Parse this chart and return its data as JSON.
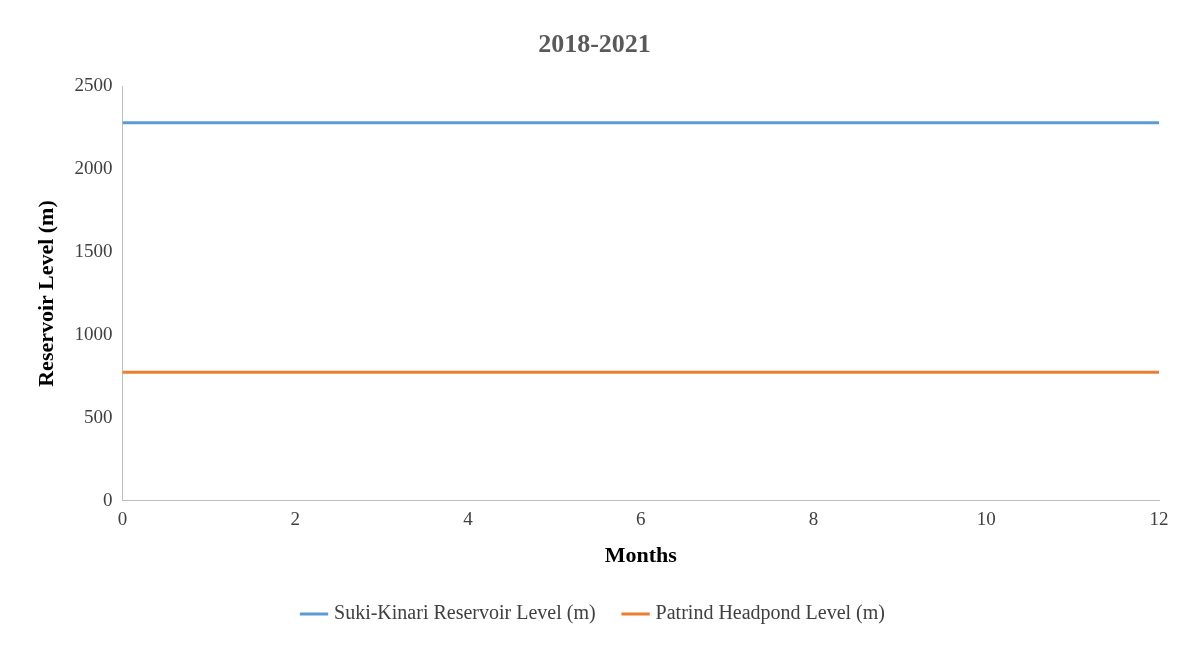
{
  "chart_data": {
    "type": "line",
    "title": "2018-2021",
    "xlabel": "Months",
    "ylabel": "Reservoir Level (m)",
    "x": [
      0,
      12
    ],
    "series": [
      {
        "name": "Suki-Kinari Reservoir Level (m)",
        "color": "#5b9bd5",
        "values": [
          2280,
          2280
        ]
      },
      {
        "name": "Patrind Headpond Level (m)",
        "color": "#ed7d31",
        "values": [
          775,
          775
        ]
      }
    ],
    "xlim": [
      0,
      12
    ],
    "xticks": [
      0,
      2,
      4,
      6,
      8,
      10,
      12
    ],
    "ylim": [
      0,
      2500
    ],
    "yticks": [
      0,
      500,
      1000,
      1500,
      2000,
      2500
    ],
    "grid": false,
    "legend": "bottom",
    "marker": "none",
    "line_style": "solid"
  }
}
